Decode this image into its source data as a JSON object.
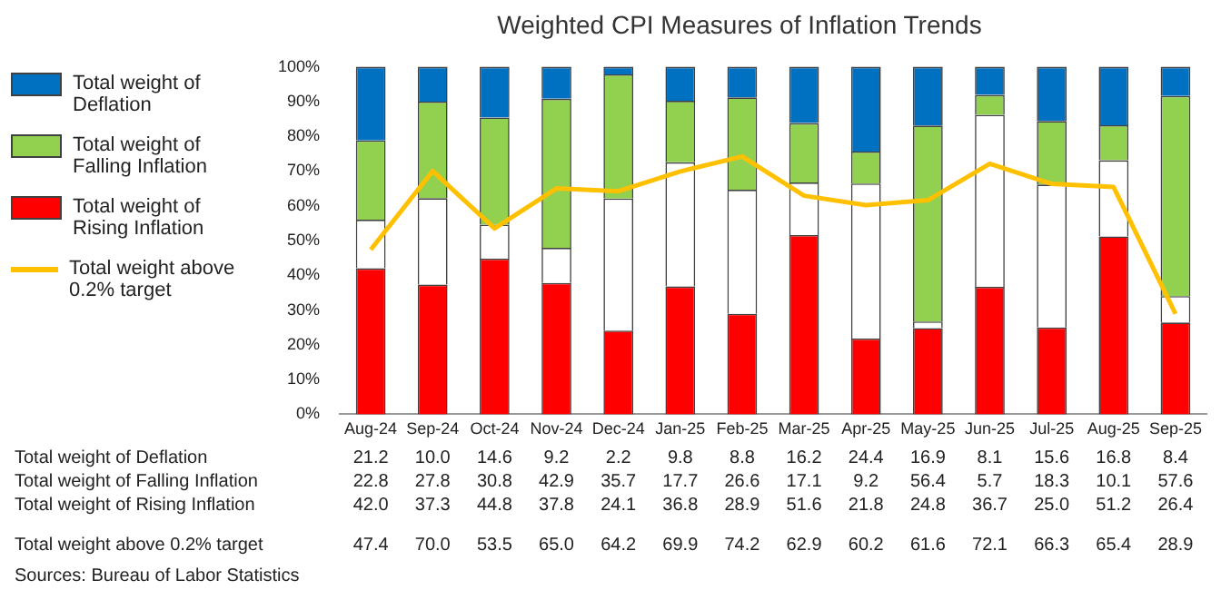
{
  "chart_data": {
    "type": "bar",
    "title": "Weighted CPI Measures of Inflation Trends",
    "categories": [
      "Aug-24",
      "Sep-24",
      "Oct-24",
      "Nov-24",
      "Dec-24",
      "Jan-25",
      "Feb-25",
      "Mar-25",
      "Apr-25",
      "May-25",
      "Jun-25",
      "Jul-25",
      "Aug-25",
      "Sep-25"
    ],
    "stacked": true,
    "series": [
      {
        "name": "Total weight of Rising Inflation",
        "color": "#ff0000",
        "values": [
          42.0,
          37.3,
          44.8,
          37.8,
          24.1,
          36.8,
          28.9,
          51.6,
          21.8,
          24.8,
          36.7,
          25.0,
          51.2,
          26.4
        ],
        "value_labels": [
          "42.0",
          "37.3",
          "44.8",
          "37.8",
          "24.1",
          "36.8",
          "28.9",
          "51.6",
          "21.8",
          "24.8",
          "36.7",
          "25.0",
          "51.2",
          "26.4"
        ]
      },
      {
        "color": "#ffffff",
        "values": [
          14.0,
          24.9,
          9.8,
          10.1,
          38.0,
          35.7,
          35.7,
          15.1,
          44.6,
          1.9,
          49.5,
          41.1,
          21.9,
          7.6
        ]
      },
      {
        "name": "Total weight of Falling Inflation",
        "color": "#92d050",
        "values": [
          22.8,
          27.8,
          30.8,
          42.9,
          35.7,
          17.7,
          26.6,
          17.1,
          9.2,
          56.4,
          5.7,
          18.3,
          10.1,
          57.6
        ],
        "value_labels": [
          "22.8",
          "27.8",
          "30.8",
          "42.9",
          "35.7",
          "17.7",
          "26.6",
          "17.1",
          "9.2",
          "56.4",
          "5.7",
          "18.3",
          "10.1",
          "57.6"
        ]
      },
      {
        "name": "Total weight of Deflation",
        "color": "#0070c0",
        "values": [
          21.2,
          10.0,
          14.6,
          9.2,
          2.2,
          9.8,
          8.8,
          16.2,
          24.4,
          16.9,
          8.1,
          15.6,
          16.8,
          8.4
        ],
        "value_labels": [
          "21.2",
          "10.0",
          "14.6",
          "9.2",
          "2.2",
          "9.8",
          "8.8",
          "16.2",
          "24.4",
          "16.9",
          "8.1",
          "15.6",
          "16.8",
          "8.4"
        ]
      },
      {
        "name": "Total weight above 0.2% target",
        "type": "line",
        "color": "#ffc000",
        "values": [
          47.4,
          70.0,
          53.5,
          65.0,
          64.2,
          69.9,
          74.2,
          62.9,
          60.2,
          61.6,
          72.1,
          66.3,
          65.4,
          28.9
        ],
        "value_labels": [
          "47.4",
          "70.0",
          "53.5",
          "65.0",
          "64.2",
          "69.9",
          "74.2",
          "62.9",
          "60.2",
          "61.6",
          "72.1",
          "66.3",
          "65.4",
          "28.9"
        ]
      }
    ],
    "ylim": [
      0,
      100
    ],
    "yticks": [
      {
        "value": 0,
        "label": "0%"
      },
      {
        "value": 10,
        "label": "10%"
      },
      {
        "value": 20,
        "label": "20%"
      },
      {
        "value": 30,
        "label": "30%"
      },
      {
        "value": 40,
        "label": "40%"
      },
      {
        "value": 50,
        "label": "50%"
      },
      {
        "value": 60,
        "label": "60%"
      },
      {
        "value": 70,
        "label": "70%"
      },
      {
        "value": 80,
        "label": "80%"
      },
      {
        "value": 90,
        "label": "90%"
      },
      {
        "value": 100,
        "label": "100%"
      }
    ],
    "grid": false,
    "legend": "left",
    "marker": "none",
    "annotations": [
      "Sources: Bureau of Labor Statistics"
    ]
  }
}
